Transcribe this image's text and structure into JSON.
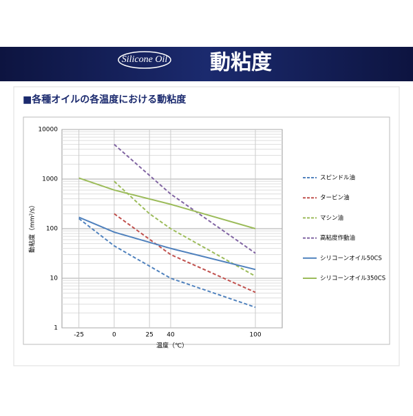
{
  "header": {
    "logo": "Silicone Oil",
    "title": "動粘度"
  },
  "section_title": "■各種オイルの各温度における動粘度",
  "chart_data": {
    "type": "line",
    "xlabel": "温度（℃）",
    "ylabel": "動粘度（mm²/s）",
    "xlim": [
      -37,
      119
    ],
    "xticks": [
      -25,
      0,
      25,
      40,
      100
    ],
    "ylim": [
      1,
      10000
    ],
    "yticks": [
      1,
      10,
      100,
      1000,
      10000
    ],
    "log_y": true,
    "grid": true,
    "legend": "right",
    "series": [
      {
        "name": "スピンドル油",
        "color": "#4f81bd",
        "style": "dashed",
        "x": [
          -25,
          0,
          40,
          100
        ],
        "values": [
          160,
          45,
          10,
          2.6
        ]
      },
      {
        "name": "タービン油",
        "color": "#c0504d",
        "style": "dashed",
        "x": [
          0,
          40,
          100
        ],
        "values": [
          200,
          30,
          5.2
        ]
      },
      {
        "name": "マシン油",
        "color": "#9bbb59",
        "style": "dashed",
        "x": [
          0,
          25,
          40,
          100
        ],
        "values": [
          900,
          200,
          100,
          11
        ]
      },
      {
        "name": "高粘度作動油",
        "color": "#8064a2",
        "style": "dashed",
        "x": [
          0,
          40,
          100
        ],
        "values": [
          5000,
          500,
          32
        ]
      },
      {
        "name": "シリコーンオイル50CS",
        "color": "#4f81bd",
        "style": "solid",
        "x": [
          -25,
          0,
          40,
          100
        ],
        "values": [
          170,
          85,
          40,
          15
        ]
      },
      {
        "name": "シリコーンオイル350CS",
        "color": "#9bbb59",
        "style": "solid",
        "x": [
          -25,
          0,
          40,
          100
        ],
        "values": [
          1050,
          600,
          310,
          100
        ]
      }
    ]
  }
}
